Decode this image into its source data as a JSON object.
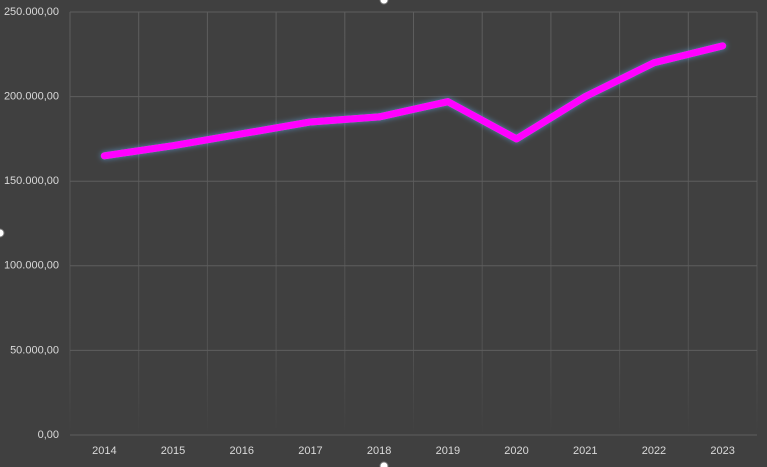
{
  "chart_data": {
    "type": "line",
    "categories": [
      "2014",
      "2015",
      "2016",
      "2017",
      "2018",
      "2019",
      "2020",
      "2021",
      "2022",
      "2023"
    ],
    "series": [
      {
        "color": "#ff00ff",
        "values": [
          165000,
          171000,
          178000,
          185000,
          188000,
          197000,
          175000,
          200000,
          220000,
          230000
        ]
      }
    ],
    "ylim": [
      0,
      250000
    ],
    "yticks": [
      {
        "value": 0,
        "label": "0,00"
      },
      {
        "value": 50000,
        "label": "50.000,00"
      },
      {
        "value": 100000,
        "label": "100.000,00"
      },
      {
        "value": 150000,
        "label": "150.000,00"
      },
      {
        "value": 200000,
        "label": "200.000,00"
      },
      {
        "value": 250000,
        "label": "250.000,00"
      }
    ],
    "grid": true
  }
}
